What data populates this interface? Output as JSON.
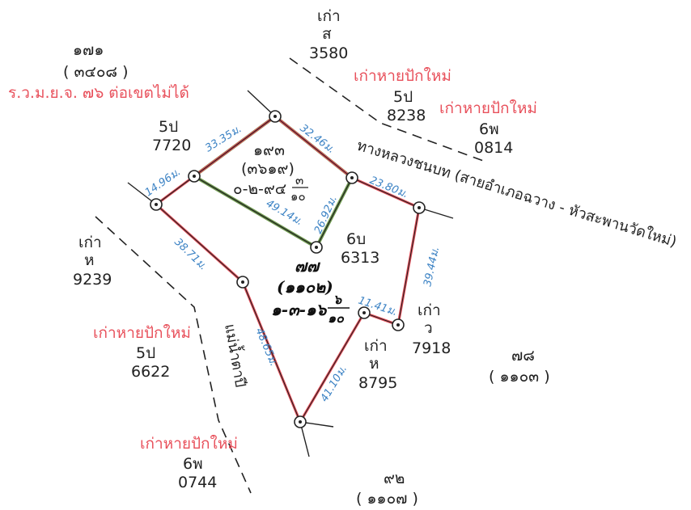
{
  "colors": {
    "red_text": "#e8505b",
    "blue_text": "#3b82c4",
    "parcel_outline": "#e8505b",
    "adjacent_outline": "#6f9a4f",
    "line": "#222222"
  },
  "neighbors": {
    "top_left_number": "๑๗๑",
    "top_left_sub": "( ๓๔๐๘ )",
    "top_left_note": "ร.ว.ม.ย.จ. ๗๖ ต่อเขตไม่ได้",
    "top_center_1": "เก่า",
    "top_center_2": "ส",
    "top_center_3": "3580",
    "tr_note": "เก่าหายปักใหม่",
    "tr_code": "5ป",
    "tr_num": "8238",
    "tr2_note": "เก่าหายปักใหม่",
    "tr2_code": "6พ",
    "tr2_num": "0814",
    "left_code": "5ป",
    "left_num": "7720",
    "left2_1": "เก่า",
    "left2_2": "ห",
    "left2_3": "9239",
    "bl_note": "เก่าหายปักใหม่",
    "bl_code": "5ป",
    "bl_num": "6622",
    "bottom_note": "เก่าหายปักใหม่",
    "bottom_code": "6พ",
    "bottom_num": "0744",
    "bottom_right_number": "๙๒",
    "bottom_right_sub": "( ๑๑๐๗ )",
    "right_number": "๗๘",
    "right_sub": "( ๑๑๐๓ )",
    "center_code": "6บ",
    "center_num": "6313",
    "mid_1": "เก่า",
    "mid_2": "ห",
    "mid_3": "8795",
    "mid_right_1": "เก่า",
    "mid_right_2": "ว",
    "mid_right_3": "7918"
  },
  "adjacent_parcel": {
    "number": "๑๙๓",
    "sub": "(๓๖๑๙)",
    "area": "๐-๒-๙๔",
    "area_frac_top": "๓",
    "area_frac_bottom": "๑๐"
  },
  "main_parcel": {
    "number": "๗๗",
    "sub": "(๑๑๐๒)",
    "area": "๑-๓-๑๖",
    "area_frac_top": "๖",
    "area_frac_bottom": "๑๐"
  },
  "road": "ทางหลวงชนบท (สายอำเภอฉวาง - หัวสะพานวัดใหม่)",
  "canal": "แม่น้ำตาปี",
  "distances": {
    "d1": "33.35ม.",
    "d2": "32.46ม.",
    "d3": "14.96ม.",
    "d4": "23.80ม.",
    "d5": "49.14ม.",
    "d6": "26.92ม.",
    "d7": "38.71ม.",
    "d8": "39.44ม.",
    "d9": "11.41ม.",
    "d10": "48.65ม.",
    "d11": "41.10ม."
  }
}
